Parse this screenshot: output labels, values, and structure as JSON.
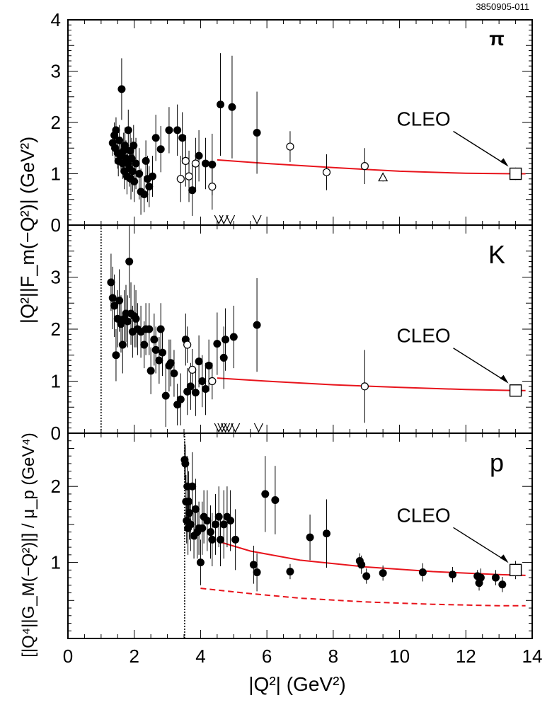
{
  "figure_id": "3850905-011",
  "xlabel": "|Q²| (GeV²)",
  "ylabel_upper": "|Q²||F_m(−Q²)| (GeV²)",
  "ylabel_lower": "[|Q⁴||G_M(−Q²)|] / μ_p  (GeV⁴)",
  "colors": {
    "fit": "#e8141c",
    "axis": "#000000",
    "marker": "#000000"
  },
  "chart_data": [
    {
      "type": "scatter",
      "panel": "π",
      "xlim": [
        0,
        14
      ],
      "ylim": [
        0,
        4
      ],
      "yticks": [
        0,
        1,
        2,
        3,
        4
      ],
      "xticks": [
        0,
        2,
        4,
        6,
        8,
        10,
        12,
        14
      ],
      "annotation": "CLEO",
      "cleo_point": {
        "x": 13.5,
        "y": 1.0,
        "err": 0.12
      },
      "fit_curve": [
        [
          4.5,
          1.27
        ],
        [
          6,
          1.2
        ],
        [
          8,
          1.12
        ],
        [
          10,
          1.05
        ],
        [
          12,
          1.01
        ],
        [
          13.5,
          1.0
        ],
        [
          13.8,
          1.0
        ]
      ],
      "vertical_line": null,
      "series": [
        {
          "marker": "filled",
          "points": [
            [
              1.35,
              1.6,
              0.25
            ],
            [
              1.4,
              1.75,
              0.25
            ],
            [
              1.42,
              1.5,
              0.3
            ],
            [
              1.45,
              1.85,
              0.25
            ],
            [
              1.5,
              1.4,
              0.3
            ],
            [
              1.52,
              1.25,
              0.3
            ],
            [
              1.55,
              1.65,
              0.3
            ],
            [
              1.6,
              1.35,
              0.3
            ],
            [
              1.62,
              2.65,
              0.6
            ],
            [
              1.65,
              1.2,
              0.3
            ],
            [
              1.68,
              1.45,
              0.35
            ],
            [
              1.7,
              1.05,
              0.35
            ],
            [
              1.72,
              1.55,
              0.35
            ],
            [
              1.75,
              1.3,
              0.35
            ],
            [
              1.78,
              0.95,
              0.35
            ],
            [
              1.8,
              1.2,
              0.35
            ],
            [
              1.82,
              1.85,
              0.4
            ],
            [
              1.85,
              1.1,
              0.35
            ],
            [
              1.88,
              1.45,
              0.4
            ],
            [
              1.9,
              0.9,
              0.4
            ],
            [
              1.92,
              1.3,
              0.4
            ],
            [
              1.95,
              1.05,
              0.4
            ],
            [
              1.98,
              1.55,
              0.4
            ],
            [
              2.0,
              0.85,
              0.4
            ],
            [
              2.05,
              1.2,
              0.5
            ],
            [
              2.15,
              1.0,
              0.5
            ],
            [
              2.2,
              0.65,
              0.45
            ],
            [
              2.3,
              0.6,
              0.35
            ],
            [
              2.35,
              1.25,
              0.4
            ],
            [
              2.4,
              0.9,
              0.45
            ],
            [
              2.45,
              0.75,
              0.4
            ],
            [
              2.55,
              0.95,
              0.4
            ],
            [
              2.65,
              1.7,
              0.45
            ],
            [
              2.8,
              1.48,
              0.45
            ],
            [
              3.05,
              1.85,
              0.45
            ],
            [
              3.3,
              1.85,
              0.5
            ],
            [
              3.45,
              1.7,
              0.5
            ],
            [
              3.75,
              0.68,
              0.5
            ],
            [
              3.95,
              1.35,
              0.5
            ],
            [
              4.15,
              1.2,
              0.5
            ],
            [
              4.35,
              1.18,
              0.6
            ],
            [
              4.6,
              2.35,
              1.0
            ],
            [
              4.95,
              2.3,
              1.0
            ],
            [
              5.7,
              1.8,
              0.8
            ]
          ]
        },
        {
          "marker": "open",
          "points": [
            [
              3.4,
              0.9,
              0.45
            ],
            [
              3.55,
              1.25,
              0.5
            ],
            [
              3.65,
              0.95,
              0.5
            ],
            [
              3.85,
              1.2,
              0.5
            ],
            [
              4.35,
              0.75,
              0.45
            ],
            [
              6.7,
              1.53,
              0.3
            ],
            [
              7.8,
              1.03,
              0.35
            ],
            [
              8.95,
              1.15,
              0.35
            ]
          ]
        },
        {
          "marker": "triangle",
          "points": [
            [
              9.5,
              0.93,
              0.08
            ]
          ]
        }
      ],
      "upper_limits": [
        [
          4.55,
          0.55
        ],
        [
          4.7,
          0.55
        ],
        [
          4.9,
          0.55
        ],
        [
          5.7,
          0.55
        ]
      ]
    },
    {
      "type": "scatter",
      "panel": "K",
      "xlim": [
        0,
        14
      ],
      "ylim": [
        0,
        4
      ],
      "yticks": [
        0,
        1,
        2,
        3
      ],
      "xticks": [
        0,
        2,
        4,
        6,
        8,
        10,
        12,
        14
      ],
      "annotation": "CLEO",
      "cleo_point": {
        "x": 13.5,
        "y": 0.82,
        "err": 0.08
      },
      "fit_curve": [
        [
          4.5,
          1.06
        ],
        [
          6,
          1.0
        ],
        [
          8,
          0.93
        ],
        [
          10,
          0.88
        ],
        [
          12,
          0.84
        ],
        [
          13.5,
          0.82
        ],
        [
          13.8,
          0.82
        ]
      ],
      "vertical_line": 1.0,
      "series": [
        {
          "marker": "filled",
          "points": [
            [
              1.3,
              2.9,
              0.55
            ],
            [
              1.35,
              2.6,
              0.6
            ],
            [
              1.4,
              2.45,
              0.6
            ],
            [
              1.45,
              1.5,
              0.5
            ],
            [
              1.5,
              2.2,
              0.55
            ],
            [
              1.55,
              2.55,
              0.6
            ],
            [
              1.6,
              2.1,
              0.55
            ],
            [
              1.65,
              1.7,
              0.55
            ],
            [
              1.7,
              2.2,
              0.55
            ],
            [
              1.75,
              2.3,
              0.55
            ],
            [
              1.8,
              2.15,
              0.5
            ],
            [
              1.85,
              3.3,
              0.7
            ],
            [
              1.9,
              2.3,
              0.6
            ],
            [
              1.95,
              1.95,
              0.5
            ],
            [
              2.0,
              2.25,
              0.6
            ],
            [
              2.05,
              2.2,
              0.55
            ],
            [
              2.1,
              2.0,
              0.5
            ],
            [
              2.2,
              1.95,
              0.5
            ],
            [
              2.3,
              1.7,
              0.45
            ],
            [
              2.35,
              2.0,
              0.5
            ],
            [
              2.45,
              2.0,
              0.5
            ],
            [
              2.5,
              1.2,
              0.45
            ],
            [
              2.6,
              1.8,
              0.5
            ],
            [
              2.65,
              1.6,
              0.45
            ],
            [
              2.75,
              1.4,
              0.45
            ],
            [
              2.8,
              2.0,
              0.5
            ],
            [
              2.85,
              1.55,
              0.45
            ],
            [
              2.95,
              0.72,
              0.6
            ],
            [
              3.05,
              1.3,
              0.5
            ],
            [
              3.1,
              1.35,
              0.45
            ],
            [
              3.2,
              1.15,
              0.45
            ],
            [
              3.3,
              0.55,
              0.4
            ],
            [
              3.4,
              0.65,
              0.5
            ],
            [
              3.55,
              1.8,
              0.5
            ],
            [
              3.6,
              0.8,
              0.45
            ],
            [
              3.7,
              0.9,
              0.45
            ],
            [
              3.85,
              0.78,
              0.45
            ],
            [
              3.95,
              1.38,
              0.5
            ],
            [
              4.05,
              1.0,
              0.5
            ],
            [
              4.15,
              0.85,
              0.5
            ],
            [
              4.25,
              1.3,
              0.5
            ],
            [
              4.5,
              1.72,
              0.6
            ],
            [
              4.7,
              1.45,
              0.6
            ],
            [
              4.75,
              1.8,
              0.6
            ],
            [
              5.0,
              1.85,
              0.6
            ],
            [
              5.7,
              2.08,
              0.9
            ]
          ]
        },
        {
          "marker": "open",
          "points": [
            [
              3.6,
              1.7,
              0.35
            ],
            [
              3.75,
              1.22,
              0.4
            ],
            [
              4.35,
              1.0,
              0.35
            ],
            [
              8.95,
              0.9,
              0.7
            ]
          ]
        }
      ],
      "upper_limits": [
        [
          4.55,
          0.0
        ],
        [
          4.65,
          0.0
        ],
        [
          4.75,
          0.0
        ],
        [
          4.85,
          0.0
        ],
        [
          5.05,
          0.0
        ],
        [
          5.75,
          0.0
        ]
      ]
    },
    {
      "type": "scatter",
      "panel": "p",
      "xlim": [
        0,
        14
      ],
      "ylim": [
        0,
        2.7
      ],
      "yticks": [
        1,
        2
      ],
      "xticks": [
        0,
        2,
        4,
        6,
        8,
        10,
        12,
        14
      ],
      "annotation": "CLEO",
      "cleo_point": {
        "x": 13.5,
        "y": 0.9,
        "err": 0.12
      },
      "fit_curve": [
        [
          4.5,
          1.28
        ],
        [
          5.5,
          1.15
        ],
        [
          7,
          1.03
        ],
        [
          9,
          0.94
        ],
        [
          11,
          0.88
        ],
        [
          13,
          0.84
        ],
        [
          13.8,
          0.83
        ]
      ],
      "dashed_curve": [
        [
          4.0,
          0.66
        ],
        [
          5.5,
          0.59
        ],
        [
          7,
          0.53
        ],
        [
          9,
          0.48
        ],
        [
          11,
          0.45
        ],
        [
          13,
          0.43
        ],
        [
          13.8,
          0.43
        ]
      ],
      "vertical_line": 3.52,
      "series": [
        {
          "marker": "filled",
          "points": [
            [
              3.52,
              2.35,
              0.25
            ],
            [
              3.54,
              2.3,
              0.25
            ],
            [
              3.56,
              1.8,
              0.35
            ],
            [
              3.58,
              1.55,
              0.3
            ],
            [
              3.6,
              2.0,
              0.4
            ],
            [
              3.62,
              1.45,
              0.35
            ],
            [
              3.64,
              1.8,
              0.4
            ],
            [
              3.66,
              1.65,
              0.35
            ],
            [
              3.7,
              1.5,
              0.35
            ],
            [
              3.75,
              2.0,
              0.45
            ],
            [
              3.8,
              1.35,
              0.3
            ],
            [
              3.85,
              1.7,
              0.4
            ],
            [
              3.9,
              1.4,
              0.35
            ],
            [
              3.95,
              1.45,
              0.35
            ],
            [
              4.0,
              1.0,
              0.3
            ],
            [
              4.05,
              1.45,
              0.35
            ],
            [
              4.1,
              1.6,
              0.35
            ],
            [
              4.2,
              1.55,
              0.4
            ],
            [
              4.3,
              1.4,
              0.35
            ],
            [
              4.35,
              1.3,
              0.35
            ],
            [
              4.45,
              1.5,
              0.4
            ],
            [
              4.55,
              1.6,
              0.4
            ],
            [
              4.6,
              1.3,
              0.35
            ],
            [
              4.7,
              1.5,
              0.45
            ],
            [
              4.8,
              1.6,
              0.4
            ],
            [
              4.9,
              1.55,
              0.4
            ],
            [
              5.05,
              1.3,
              0.4
            ],
            [
              5.6,
              0.97,
              0.25
            ],
            [
              5.7,
              0.87,
              0.25
            ],
            [
              5.95,
              1.9,
              0.5
            ],
            [
              6.25,
              1.82,
              0.45
            ],
            [
              6.7,
              0.88,
              0.1
            ],
            [
              7.3,
              1.33,
              0.3
            ],
            [
              7.8,
              1.38,
              0.45
            ],
            [
              8.8,
              1.02,
              0.1
            ],
            [
              8.85,
              0.97,
              0.12
            ],
            [
              9.0,
              0.82,
              0.1
            ],
            [
              9.5,
              0.86,
              0.1
            ],
            [
              10.7,
              0.87,
              0.12
            ],
            [
              11.6,
              0.84,
              0.1
            ],
            [
              12.35,
              0.82,
              0.08
            ],
            [
              12.4,
              0.73,
              0.1
            ],
            [
              12.45,
              0.8,
              0.12
            ],
            [
              12.9,
              0.8,
              0.1
            ],
            [
              13.1,
              0.71,
              0.1
            ]
          ]
        }
      ],
      "upper_limits": []
    }
  ]
}
